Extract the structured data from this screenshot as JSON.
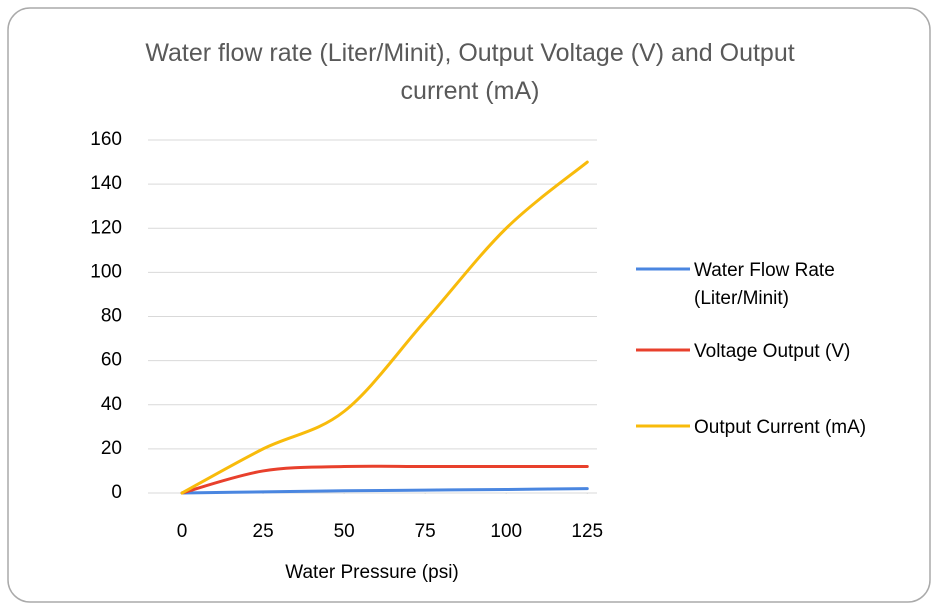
{
  "chart_data": {
    "type": "line",
    "title": "Water flow rate (Liter/Minit), Output Voltage (V) and Output current  (mA)",
    "x_label": "Water Pressure (psi)",
    "x": [
      0,
      25,
      50,
      75,
      100,
      125
    ],
    "xlim": [
      -10.5,
      128
    ],
    "xticks": [
      0,
      25,
      50,
      75,
      100,
      125
    ],
    "ylim": [
      0,
      160
    ],
    "yticks": [
      0,
      20,
      40,
      60,
      80,
      100,
      120,
      140,
      160
    ],
    "grid": true,
    "smooth": true,
    "legend": "right",
    "series": [
      {
        "name": "Water Flow Rate (Liter/Minit)",
        "color": "#4a86e0",
        "values": [
          0,
          0.5,
          1,
          1.3,
          1.6,
          2
        ]
      },
      {
        "name": "Voltage Output (V)",
        "color": "#e8402c",
        "values": [
          0,
          10,
          12,
          12,
          12,
          12
        ]
      },
      {
        "name": "Output  Current (mA)",
        "color": "#f8bb0b",
        "values": [
          0,
          20,
          37,
          78,
          120,
          150
        ]
      }
    ]
  }
}
